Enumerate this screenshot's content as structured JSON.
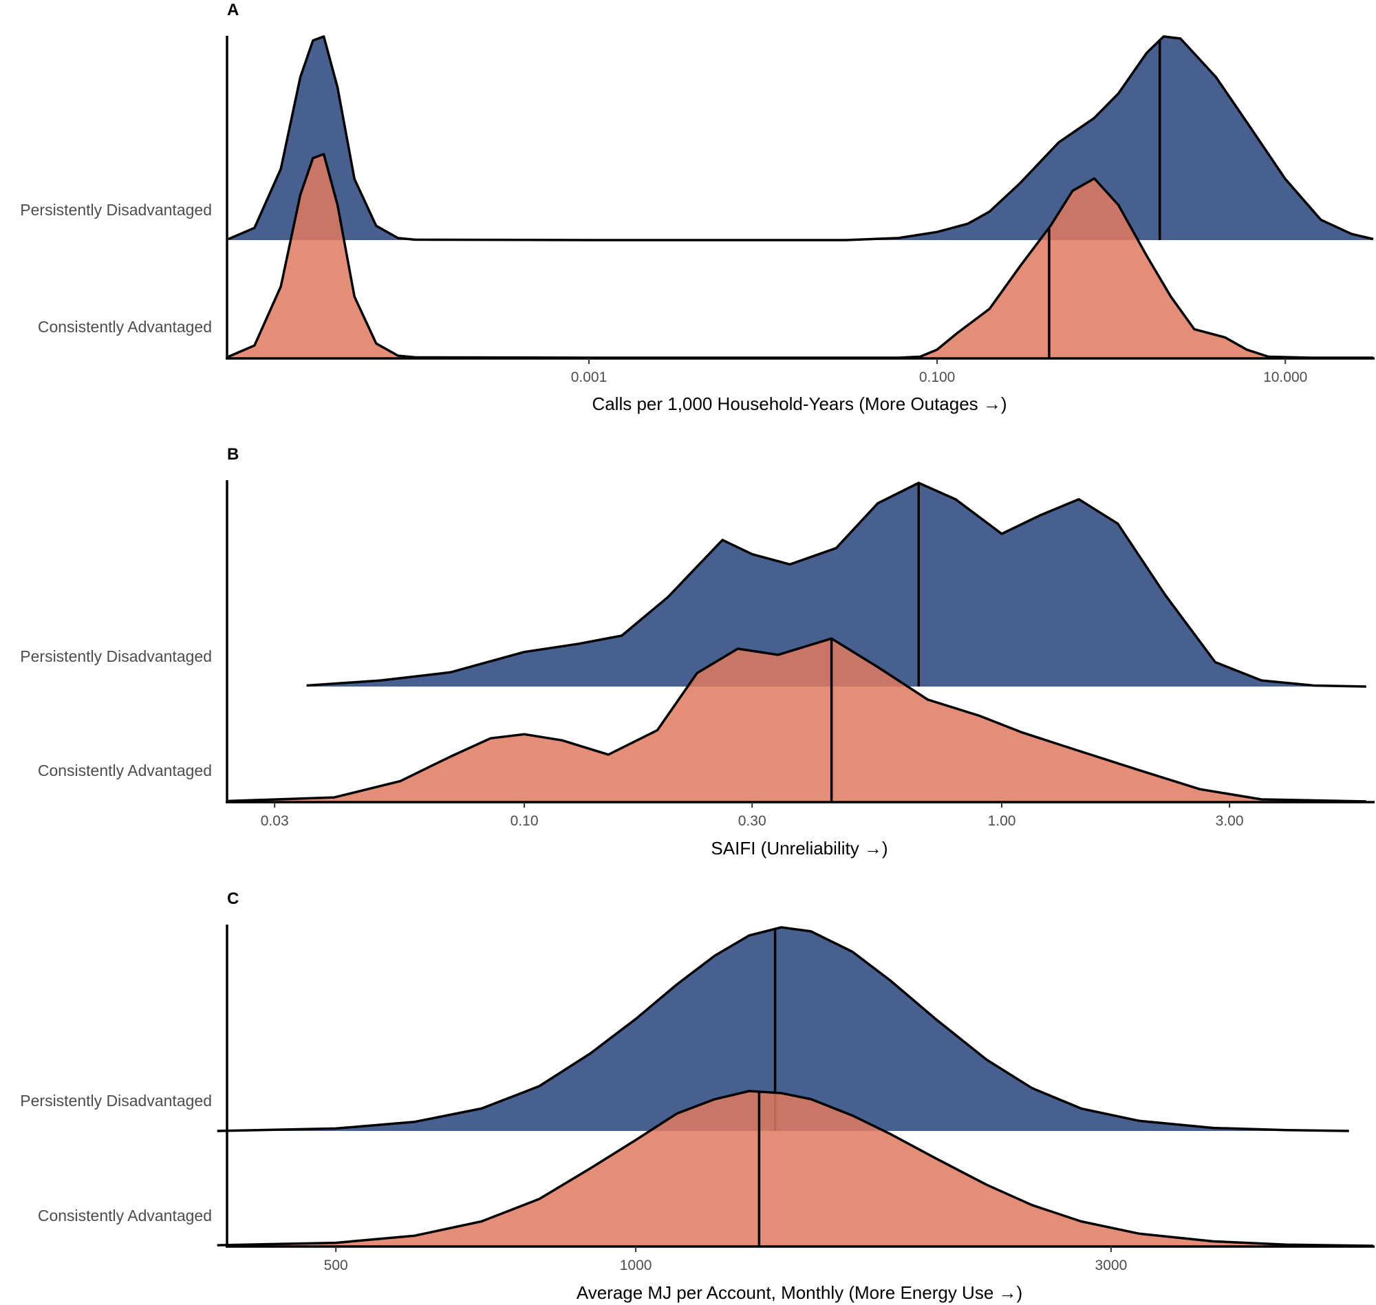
{
  "chart_data": [
    {
      "panel": "A",
      "type": "ridgeline-density",
      "xlabel": "Calls per 1,000 Household-Years (More Outages →)",
      "xscale": "log10",
      "xlim": [
        8.5e-06,
        32
      ],
      "ticks": [
        {
          "value": 0.001,
          "label": "0.001"
        },
        {
          "value": 0.1,
          "label": "0.100"
        },
        {
          "value": 10,
          "label": "10.000"
        }
      ],
      "series": [
        {
          "name": "Persistently Disadvantaged",
          "color": "#2E4A80",
          "median": 1.9,
          "density": [
            [
              8.5e-06,
              0.005
            ],
            [
              1.2e-05,
              0.06
            ],
            [
              1.7e-05,
              0.35
            ],
            [
              2.2e-05,
              0.8
            ],
            [
              2.6e-05,
              0.98
            ],
            [
              3e-05,
              1.0
            ],
            [
              3.6e-05,
              0.75
            ],
            [
              4.5e-05,
              0.3
            ],
            [
              6e-05,
              0.07
            ],
            [
              8e-05,
              0.01
            ],
            [
              0.0001,
              0.002
            ],
            [
              0.001,
              0
            ],
            [
              0.03,
              0
            ],
            [
              0.06,
              0.01
            ],
            [
              0.1,
              0.04
            ],
            [
              0.15,
              0.08
            ],
            [
              0.2,
              0.14
            ],
            [
              0.3,
              0.28
            ],
            [
              0.5,
              0.48
            ],
            [
              0.8,
              0.6
            ],
            [
              1.1,
              0.72
            ],
            [
              1.6,
              0.92
            ],
            [
              2.0,
              1.0
            ],
            [
              2.5,
              0.99
            ],
            [
              4,
              0.8
            ],
            [
              6,
              0.58
            ],
            [
              10,
              0.3
            ],
            [
              16,
              0.1
            ],
            [
              24,
              0.03
            ],
            [
              32,
              0.005
            ]
          ]
        },
        {
          "name": "Consistently Advantaged",
          "color": "#E07A5F",
          "median": 0.44,
          "density": [
            [
              8.5e-06,
              0.005
            ],
            [
              1.2e-05,
              0.06
            ],
            [
              1.7e-05,
              0.35
            ],
            [
              2.2e-05,
              0.8
            ],
            [
              2.6e-05,
              0.98
            ],
            [
              3e-05,
              1.0
            ],
            [
              3.6e-05,
              0.75
            ],
            [
              4.5e-05,
              0.3
            ],
            [
              6e-05,
              0.07
            ],
            [
              8e-05,
              0.01
            ],
            [
              0.0001,
              0.002
            ],
            [
              0.001,
              0
            ],
            [
              0.06,
              0
            ],
            [
              0.08,
              0.005
            ],
            [
              0.1,
              0.04
            ],
            [
              0.13,
              0.12
            ],
            [
              0.2,
              0.24
            ],
            [
              0.3,
              0.45
            ],
            [
              0.45,
              0.65
            ],
            [
              0.6,
              0.82
            ],
            [
              0.8,
              0.88
            ],
            [
              1.1,
              0.75
            ],
            [
              1.6,
              0.5
            ],
            [
              2.2,
              0.3
            ],
            [
              3,
              0.14
            ],
            [
              4.5,
              0.1
            ],
            [
              6,
              0.04
            ],
            [
              8,
              0.005
            ],
            [
              14,
              0
            ],
            [
              32,
              0
            ]
          ]
        }
      ]
    },
    {
      "panel": "B",
      "type": "ridgeline-density",
      "xlabel": "SAIFI (Unreliability →)",
      "xscale": "log10",
      "xlim": [
        0.024,
        6
      ],
      "ticks": [
        {
          "value": 0.03,
          "label": "0.03"
        },
        {
          "value": 0.1,
          "label": "0.10"
        },
        {
          "value": 0.3,
          "label": "0.30"
        },
        {
          "value": 1,
          "label": "1.00"
        },
        {
          "value": 3,
          "label": "3.00"
        }
      ],
      "series": [
        {
          "name": "Persistently Disadvantaged",
          "color": "#2E4A80",
          "median": 0.67,
          "density": [
            [
              0.035,
              0.005
            ],
            [
              0.05,
              0.03
            ],
            [
              0.07,
              0.07
            ],
            [
              0.1,
              0.17
            ],
            [
              0.13,
              0.21
            ],
            [
              0.16,
              0.25
            ],
            [
              0.2,
              0.44
            ],
            [
              0.26,
              0.72
            ],
            [
              0.3,
              0.65
            ],
            [
              0.36,
              0.6
            ],
            [
              0.45,
              0.68
            ],
            [
              0.55,
              0.9
            ],
            [
              0.67,
              1.0
            ],
            [
              0.8,
              0.92
            ],
            [
              1.0,
              0.75
            ],
            [
              1.2,
              0.84
            ],
            [
              1.45,
              0.92
            ],
            [
              1.75,
              0.8
            ],
            [
              2.2,
              0.45
            ],
            [
              2.8,
              0.12
            ],
            [
              3.5,
              0.03
            ],
            [
              4.5,
              0.005
            ],
            [
              5.8,
              0
            ]
          ]
        },
        {
          "name": "Consistently Advantaged",
          "color": "#E07A5F",
          "median": 0.44,
          "density": [
            [
              0.024,
              0.002
            ],
            [
              0.04,
              0.02
            ],
            [
              0.055,
              0.1
            ],
            [
              0.07,
              0.22
            ],
            [
              0.085,
              0.31
            ],
            [
              0.1,
              0.33
            ],
            [
              0.12,
              0.3
            ],
            [
              0.15,
              0.23
            ],
            [
              0.19,
              0.35
            ],
            [
              0.23,
              0.63
            ],
            [
              0.28,
              0.75
            ],
            [
              0.34,
              0.72
            ],
            [
              0.44,
              0.8
            ],
            [
              0.55,
              0.66
            ],
            [
              0.7,
              0.5
            ],
            [
              0.9,
              0.42
            ],
            [
              1.1,
              0.34
            ],
            [
              1.4,
              0.26
            ],
            [
              1.9,
              0.16
            ],
            [
              2.6,
              0.06
            ],
            [
              3.5,
              0.01
            ],
            [
              5.8,
              0
            ]
          ]
        }
      ]
    },
    {
      "panel": "C",
      "type": "ridgeline-density",
      "xlabel": "Average MJ per Account, Monthly (More Energy Use →)",
      "xscale": "log10",
      "xlim": [
        390,
        5500
      ],
      "ticks": [
        {
          "value": 500,
          "label": "500"
        },
        {
          "value": 1000,
          "label": "1000"
        },
        {
          "value": 3000,
          "label": "3000"
        }
      ],
      "series": [
        {
          "name": "Persistently Disadvantaged",
          "color": "#2E4A80",
          "median": 1380,
          "density": [
            [
              380,
              0
            ],
            [
              500,
              0.012
            ],
            [
              600,
              0.045
            ],
            [
              700,
              0.11
            ],
            [
              800,
              0.22
            ],
            [
              900,
              0.38
            ],
            [
              1000,
              0.55
            ],
            [
              1100,
              0.72
            ],
            [
              1200,
              0.86
            ],
            [
              1300,
              0.96
            ],
            [
              1400,
              1.0
            ],
            [
              1500,
              0.98
            ],
            [
              1650,
              0.88
            ],
            [
              1800,
              0.74
            ],
            [
              2000,
              0.55
            ],
            [
              2250,
              0.35
            ],
            [
              2500,
              0.21
            ],
            [
              2800,
              0.11
            ],
            [
              3200,
              0.05
            ],
            [
              3800,
              0.015
            ],
            [
              4500,
              0.004
            ],
            [
              5200,
              0
            ]
          ]
        },
        {
          "name": "Consistently Advantaged",
          "color": "#E07A5F",
          "median": 1330,
          "density": [
            [
              380,
              0.003
            ],
            [
              500,
              0.015
            ],
            [
              600,
              0.05
            ],
            [
              700,
              0.12
            ],
            [
              800,
              0.23
            ],
            [
              900,
              0.38
            ],
            [
              1000,
              0.52
            ],
            [
              1100,
              0.65
            ],
            [
              1200,
              0.72
            ],
            [
              1300,
              0.76
            ],
            [
              1400,
              0.75
            ],
            [
              1500,
              0.72
            ],
            [
              1650,
              0.64
            ],
            [
              1800,
              0.55
            ],
            [
              2000,
              0.43
            ],
            [
              2250,
              0.3
            ],
            [
              2500,
              0.2
            ],
            [
              2800,
              0.12
            ],
            [
              3200,
              0.06
            ],
            [
              3800,
              0.022
            ],
            [
              4500,
              0.006
            ],
            [
              5500,
              0
            ]
          ]
        }
      ]
    }
  ]
}
